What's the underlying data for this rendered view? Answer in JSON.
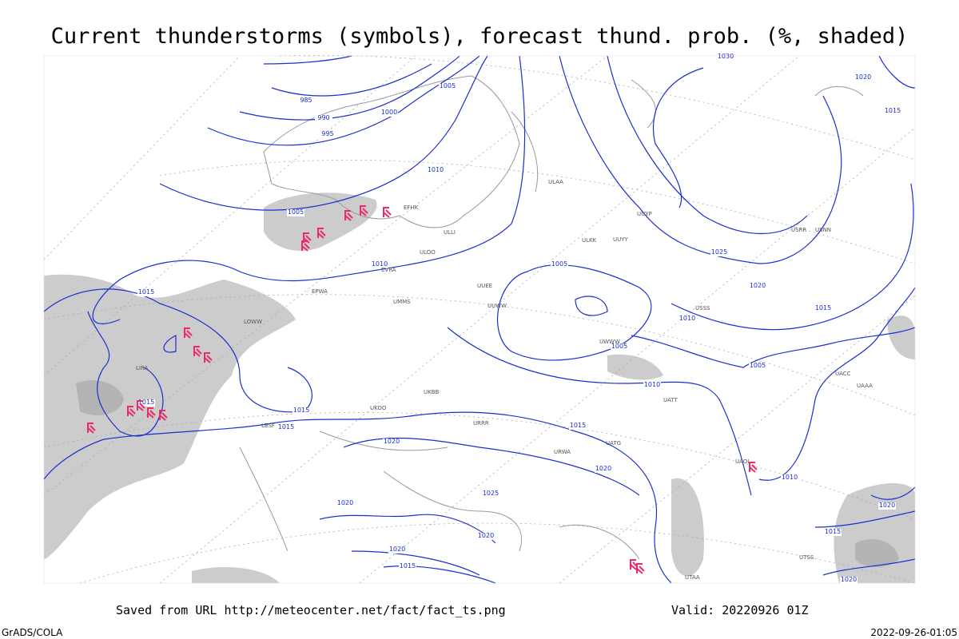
{
  "title": "Current thunderstorms (symbols), forecast thund. prob. (%, shaded)",
  "source": "Saved from URL http://meteocenter.net/fact/fact_ts.png",
  "valid": "Valid: 20220926 01Z",
  "credit": "GrADS/COLA",
  "timestamp": "2022-09-26-01:05",
  "isobar_labels": [
    985,
    990,
    995,
    1000,
    1005,
    1010,
    1005,
    1010,
    1015,
    1015,
    1015,
    1015,
    1020,
    1020,
    1025,
    1020,
    1020,
    1015,
    1005,
    1010,
    1005,
    1005,
    1010,
    1015,
    1020,
    1010,
    1025,
    1020,
    1015,
    1015,
    1020,
    1030,
    1020,
    1015,
    1020
  ],
  "stations": [
    "EFHK",
    "EVRA",
    "ULLI",
    "ULOO",
    "EPWA",
    "UMMS",
    "UUEE",
    "UUWW",
    "ULAA",
    "UUYY",
    "ULKK",
    "LOWW",
    "LIRA",
    "UKBB",
    "UKOO",
    "URRR",
    "LBSF",
    "USSS",
    "UACC",
    "UAAA",
    "UATT",
    "UTAA",
    "UTSS",
    "UWWW",
    "URWA",
    "UATG",
    "UAOL",
    "UUYP",
    "USRR",
    "USNN"
  ]
}
